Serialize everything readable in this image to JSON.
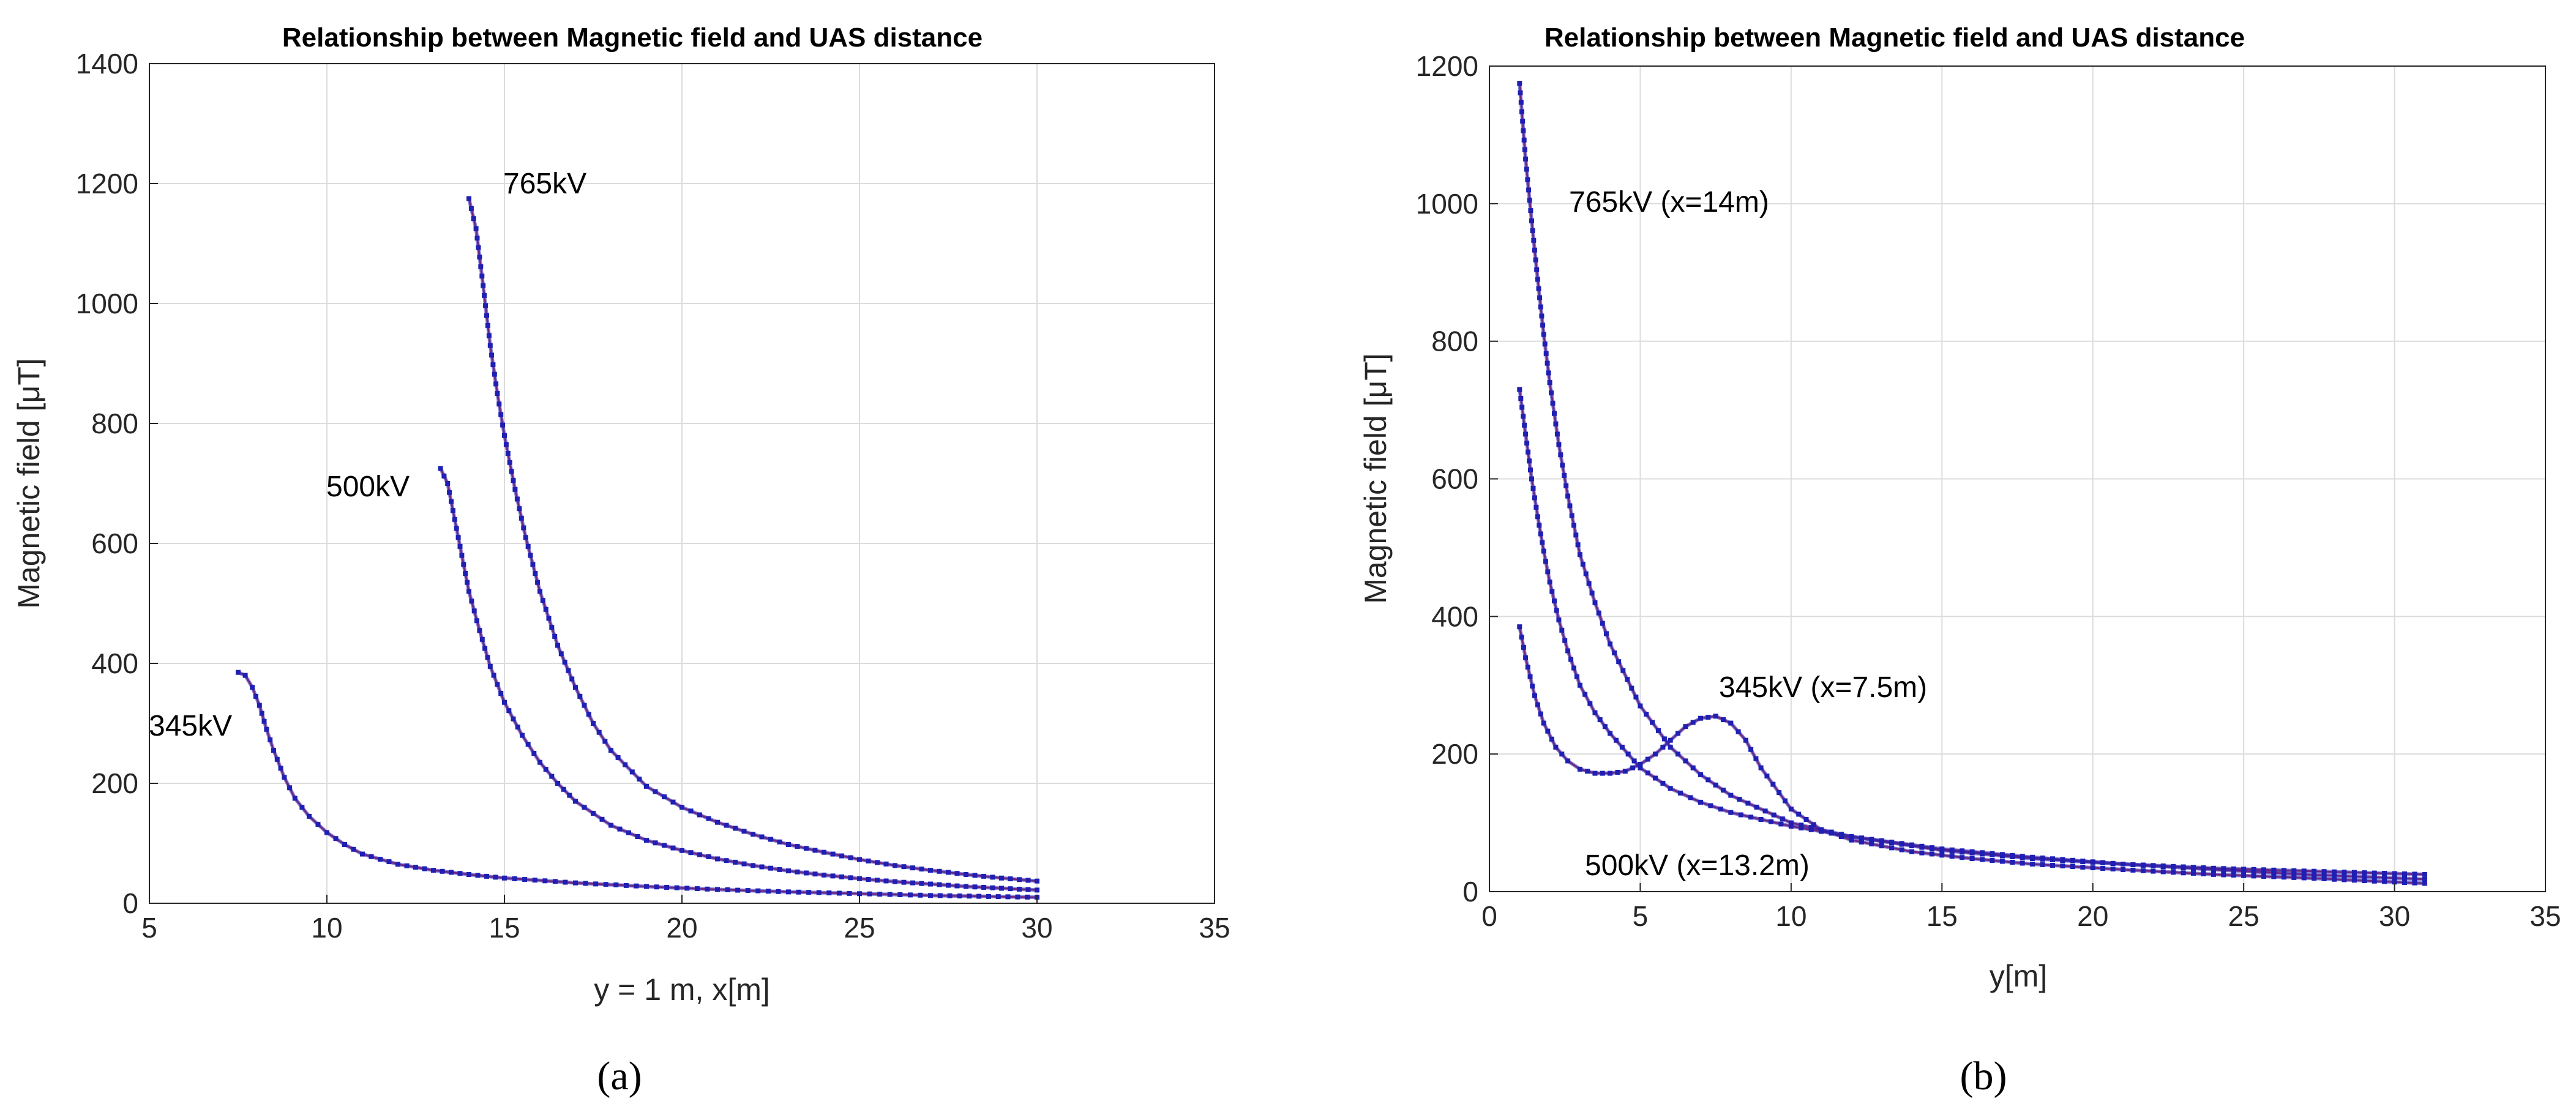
{
  "colors": {
    "data_marker": "#1f1fb4",
    "fit_line": "#d0324a",
    "grid": "#dcdcdc",
    "axis": "#262626"
  },
  "chart_data": [
    {
      "type": "line",
      "panel_label": "(a)",
      "title": "Relationship between Magnetic field and UAS distance",
      "xlabel": "y = 1 m, x[m]",
      "ylabel": "Magnetic field [μT]",
      "xlim": [
        5,
        35
      ],
      "ylim": [
        0,
        1400
      ],
      "xticks": [
        5,
        10,
        15,
        20,
        25,
        30,
        35
      ],
      "yticks": [
        0,
        200,
        400,
        600,
        800,
        1000,
        1200,
        1400
      ],
      "grid": true,
      "series": [
        {
          "name": "765kV",
          "label": "765kV",
          "x": [
            14.0,
            14.2,
            14.4,
            14.6,
            14.8,
            15.0,
            15.3,
            15.6,
            16.0,
            16.5,
            17.0,
            17.5,
            18.0,
            19.0,
            20.0,
            21.0,
            22.0,
            23.0,
            24.0,
            25.0,
            26.0,
            27.0,
            28.0,
            29.0,
            30.0
          ],
          "y": [
            1175,
            1125,
            1030,
            930,
            850,
            780,
            690,
            610,
            520,
            430,
            360,
            300,
            255,
            195,
            160,
            135,
            115,
            98,
            85,
            73,
            63,
            55,
            48,
            42,
            37
          ]
        },
        {
          "name": "500kV",
          "label": "500kV",
          "x": [
            13.2,
            13.4,
            13.6,
            13.8,
            14.0,
            14.3,
            14.6,
            15.0,
            15.5,
            16.0,
            16.5,
            17.0,
            18.0,
            19.0,
            20.0,
            21.0,
            22.0,
            23.0,
            24.0,
            25.0,
            26.0,
            27.0,
            28.0,
            29.0,
            30.0
          ],
          "y": [
            725,
            700,
            640,
            580,
            520,
            455,
            395,
            335,
            280,
            235,
            200,
            170,
            130,
            105,
            88,
            74,
            63,
            54,
            47,
            41,
            36,
            32,
            28,
            25,
            22
          ]
        },
        {
          "name": "345kV",
          "label": "345kV",
          "x": [
            7.5,
            7.7,
            7.9,
            8.1,
            8.3,
            8.5,
            8.8,
            9.1,
            9.5,
            10.0,
            10.5,
            11.0,
            12.0,
            13.0,
            14.0,
            15.0,
            17.0,
            19.0,
            21.0,
            23.0,
            25.0,
            27.0,
            30.0
          ],
          "y": [
            385,
            380,
            360,
            330,
            290,
            255,
            210,
            175,
            145,
            118,
            98,
            82,
            65,
            55,
            48,
            42,
            34,
            28,
            23,
            19,
            16,
            13,
            10
          ]
        }
      ]
    },
    {
      "type": "line",
      "panel_label": "(b)",
      "title": "Relationship between Magnetic field and UAS distance",
      "xlabel": "y[m]",
      "ylabel": "Magnetic field [μT]",
      "xlim": [
        0,
        35
      ],
      "ylim": [
        0,
        1200
      ],
      "xticks": [
        0,
        5,
        10,
        15,
        20,
        25,
        30,
        35
      ],
      "yticks": [
        0,
        200,
        400,
        600,
        800,
        1000,
        1200
      ],
      "grid": true,
      "series": [
        {
          "name": "765kV",
          "label": "765kV (x=14m)",
          "x": [
            1.0,
            1.2,
            1.4,
            1.6,
            1.8,
            2.0,
            2.3,
            2.6,
            3.0,
            3.5,
            4.0,
            5.0,
            6.0,
            7.0,
            8.0,
            10.0,
            12.0,
            15.0,
            18.0,
            21.0,
            24.0,
            27.0,
            31.0
          ],
          "y": [
            1175,
            1065,
            975,
            890,
            810,
            740,
            650,
            575,
            490,
            420,
            360,
            270,
            210,
            170,
            140,
            100,
            80,
            60,
            48,
            40,
            34,
            30,
            25
          ]
        },
        {
          "name": "500kV",
          "label": "500kV (x=13.2m)",
          "x": [
            1.0,
            1.2,
            1.4,
            1.6,
            1.8,
            2.0,
            2.3,
            2.6,
            3.0,
            3.5,
            4.0,
            5.0,
            6.0,
            7.0,
            8.0,
            10.0,
            12.0,
            15.0,
            18.0,
            21.0,
            24.0,
            27.0,
            31.0
          ],
          "y": [
            730,
            665,
            600,
            545,
            495,
            450,
            395,
            350,
            300,
            260,
            230,
            180,
            150,
            130,
            115,
            95,
            80,
            62,
            50,
            40,
            32,
            25,
            18
          ]
        },
        {
          "name": "345kV",
          "label": "345kV (x=7.5m)",
          "x": [
            1.0,
            1.2,
            1.5,
            1.8,
            2.2,
            2.6,
            3.0,
            3.5,
            4.0,
            4.5,
            5.0,
            5.5,
            6.0,
            6.5,
            7.0,
            7.5,
            8.0,
            8.5,
            9.0,
            10.0,
            11.0,
            12.0,
            14.0,
            16.0,
            18.0,
            21.0,
            24.0,
            27.0,
            31.0
          ],
          "y": [
            385,
            340,
            285,
            245,
            210,
            190,
            178,
            172,
            172,
            175,
            185,
            200,
            220,
            240,
            252,
            255,
            245,
            220,
            180,
            120,
            90,
            75,
            58,
            48,
            40,
            32,
            25,
            20,
            12
          ]
        }
      ]
    }
  ]
}
